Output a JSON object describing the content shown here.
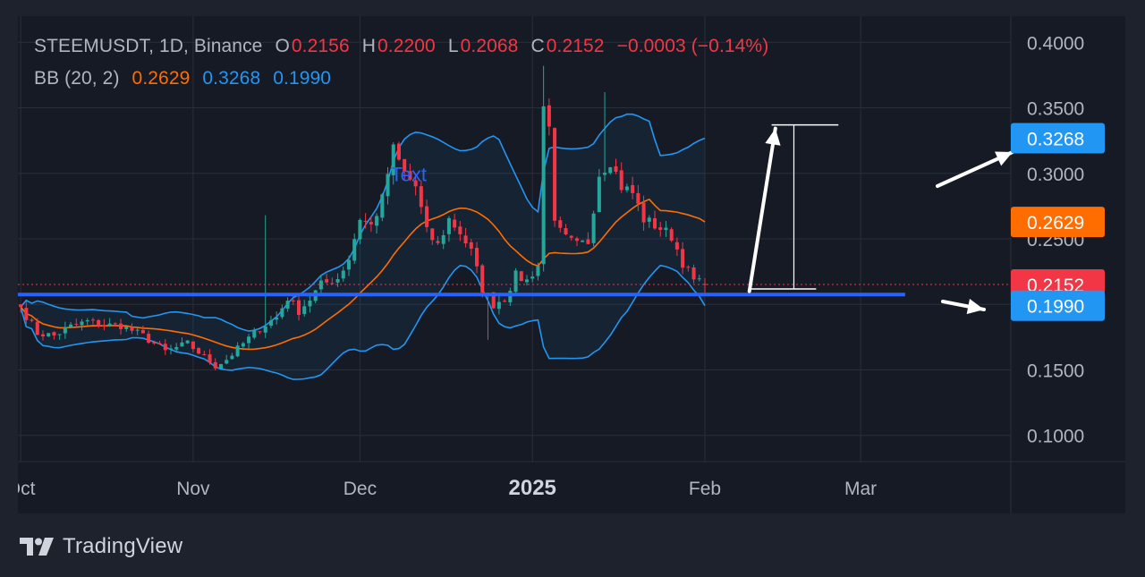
{
  "legend": {
    "symbol": "STEEMUSDT, 1D, Binance",
    "o_label": "O",
    "o_value": "0.2156",
    "h_label": "H",
    "h_value": "0.2200",
    "l_label": "L",
    "l_value": "0.2068",
    "c_label": "C",
    "c_value": "0.2152",
    "change": "−0.0003 (−0.14%)",
    "bb_label": "BB (20, 2)",
    "bb_basis": "0.2629",
    "bb_upper": "0.3268",
    "bb_lower": "0.1990"
  },
  "annotation_text": "Text",
  "brand": {
    "name": "TradingView",
    "logo_icon": "tradingview-logo-icon"
  },
  "colors": {
    "up": "#26a69a",
    "down": "#f23645",
    "basis": "#ff6d00",
    "band": "#2196f3",
    "hline": "#2962ff",
    "grid": "#2a2e39",
    "axis_text": "#b2b5be",
    "background": "#161a25"
  },
  "chart_data": {
    "type": "candlestick",
    "symbol": "STEEMUSDT",
    "interval": "1D",
    "exchange": "Binance",
    "y_ticks": [
      "0.1000",
      "0.1500",
      "0.2500",
      "0.3000",
      "0.3500",
      "0.4000"
    ],
    "ylim": [
      0.08,
      0.42
    ],
    "x_ticks": [
      {
        "label": "Oct",
        "day": 0
      },
      {
        "label": "Nov",
        "day": 31
      },
      {
        "label": "Dec",
        "day": 61
      },
      {
        "label": "2025",
        "day": 92,
        "bold": true
      },
      {
        "label": "Feb",
        "day": 123
      },
      {
        "label": "Mar",
        "day": 151
      }
    ],
    "xlim": [
      -0.5,
      178
    ],
    "price_labels": [
      {
        "value": 0.3268,
        "text": "0.3268",
        "color": "#2196f3"
      },
      {
        "value": 0.2629,
        "text": "0.2629",
        "color": "#ff6d00"
      },
      {
        "value": 0.2152,
        "text": "0.2152",
        "color": "#f23645"
      },
      {
        "value": 0.199,
        "text": "0.1990",
        "color": "#2196f3"
      }
    ],
    "last_price": 0.2152,
    "horizontal_line": 0.2075,
    "close_keypoints": [
      [
        0,
        0.198
      ],
      [
        3,
        0.178
      ],
      [
        6,
        0.176
      ],
      [
        9,
        0.183
      ],
      [
        12,
        0.187
      ],
      [
        15,
        0.184
      ],
      [
        18,
        0.184
      ],
      [
        22,
        0.176
      ],
      [
        26,
        0.164
      ],
      [
        30,
        0.17
      ],
      [
        33,
        0.16
      ],
      [
        35,
        0.153
      ],
      [
        37,
        0.158
      ],
      [
        40,
        0.17
      ],
      [
        43,
        0.182
      ],
      [
        46,
        0.19
      ],
      [
        48,
        0.205
      ],
      [
        50,
        0.195
      ],
      [
        52,
        0.204
      ],
      [
        54,
        0.215
      ],
      [
        57,
        0.22
      ],
      [
        59,
        0.235
      ],
      [
        61,
        0.266
      ],
      [
        63,
        0.26
      ],
      [
        65,
        0.28
      ],
      [
        66,
        0.3
      ],
      [
        67,
        0.318
      ],
      [
        69,
        0.3
      ],
      [
        71,
        0.29
      ],
      [
        73,
        0.255
      ],
      [
        75,
        0.245
      ],
      [
        77,
        0.265
      ],
      [
        79,
        0.255
      ],
      [
        81,
        0.24
      ],
      [
        83,
        0.212
      ],
      [
        85,
        0.2
      ],
      [
        87,
        0.205
      ],
      [
        89,
        0.222
      ],
      [
        91,
        0.218
      ],
      [
        93,
        0.23
      ],
      [
        94,
        0.35
      ],
      [
        95,
        0.34
      ],
      [
        96,
        0.26
      ],
      [
        98,
        0.25
      ],
      [
        100,
        0.245
      ],
      [
        102,
        0.248
      ],
      [
        104,
        0.3
      ],
      [
        106,
        0.31
      ],
      [
        108,
        0.29
      ],
      [
        110,
        0.285
      ],
      [
        112,
        0.265
      ],
      [
        115,
        0.258
      ],
      [
        117,
        0.252
      ],
      [
        119,
        0.232
      ],
      [
        121,
        0.218
      ],
      [
        123,
        0.2152
      ]
    ],
    "bollinger": {
      "period": 20,
      "mult": 2,
      "basis_last": 0.2629,
      "upper_last": 0.3268,
      "lower_last": 0.199
    },
    "projection": {
      "from": [
        0.21,
        131
      ],
      "to": [
        0.337,
        136
      ],
      "top_day_range": [
        135,
        147
      ],
      "bottom_day_range": [
        131,
        143
      ],
      "bottom_value": 0.2118
    }
  }
}
